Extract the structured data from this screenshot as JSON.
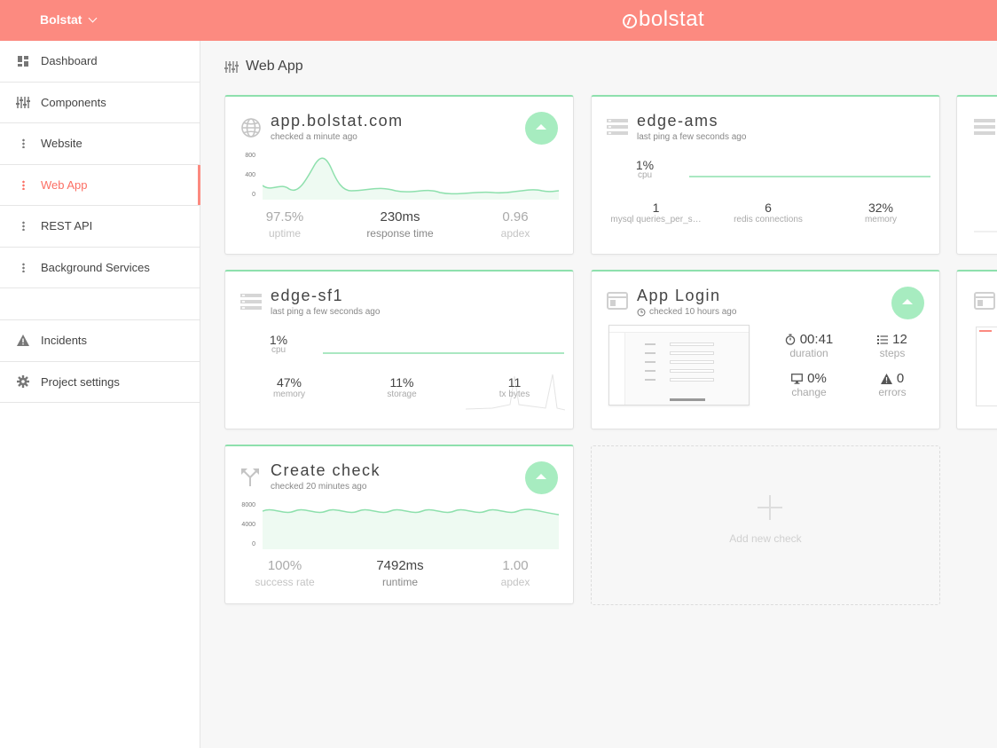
{
  "topbar": {
    "org_name": "Bolstat",
    "logo_text": "bolstat",
    "accent": "#fc8a80"
  },
  "sidebar": {
    "items": [
      {
        "label": "Dashboard",
        "icon": "dashboard-icon"
      },
      {
        "label": "Components",
        "icon": "sliders-icon"
      },
      {
        "label": "Website",
        "icon": "dots-icon"
      },
      {
        "label": "Web App",
        "icon": "dots-icon",
        "active": true
      },
      {
        "label": "REST API",
        "icon": "dots-icon"
      },
      {
        "label": "Background Services",
        "icon": "dots-icon"
      }
    ],
    "lower_items": [
      {
        "label": "Incidents",
        "icon": "warning-icon"
      },
      {
        "label": "Project settings",
        "icon": "gear-icon"
      }
    ]
  },
  "page": {
    "title": "Web App"
  },
  "cards": {
    "app": {
      "title": "app.bolstat.com",
      "subtitle": "checked a minute ago",
      "status": "up",
      "axis": [
        "800",
        "400",
        "0"
      ],
      "stats": [
        {
          "value": "97.5%",
          "label": "uptime"
        },
        {
          "value": "230ms",
          "label": "response time"
        },
        {
          "value": "0.96",
          "label": "apdex"
        }
      ]
    },
    "edge_ams": {
      "title": "edge-ams",
      "subtitle": "last ping a few seconds ago",
      "cpu": {
        "value": "1%",
        "label": "cpu"
      },
      "metrics": [
        {
          "value": "1",
          "label": "mysql queries_per_s…"
        },
        {
          "value": "6",
          "label": "redis connections"
        },
        {
          "value": "32%",
          "label": "memory"
        }
      ]
    },
    "edge_sf1": {
      "title": "edge-sf1",
      "subtitle": "last ping a few seconds ago",
      "cpu": {
        "value": "1%",
        "label": "cpu"
      },
      "metrics": [
        {
          "value": "47%",
          "label": "memory"
        },
        {
          "value": "11%",
          "label": "storage"
        },
        {
          "value": "11",
          "label": "tx bytes"
        }
      ]
    },
    "app_login": {
      "title": "App Login",
      "subtitle": "checked 10 hours ago",
      "status": "up",
      "stats": [
        {
          "value": "00:41",
          "label": "duration",
          "icon": "stopwatch-icon"
        },
        {
          "value": "12",
          "label": "steps",
          "icon": "list-icon"
        },
        {
          "value": "0%",
          "label": "change",
          "icon": "monitor-icon"
        },
        {
          "value": "0",
          "label": "errors",
          "icon": "warning-icon"
        }
      ]
    },
    "create_check": {
      "title": "Create check",
      "subtitle": "checked 20 minutes ago",
      "status": "up",
      "axis": [
        "8000",
        "4000",
        "0"
      ],
      "stats": [
        {
          "value": "100%",
          "label": "success rate"
        },
        {
          "value": "7492ms",
          "label": "runtime"
        },
        {
          "value": "1.00",
          "label": "apdex"
        }
      ]
    },
    "add": {
      "label": "Add new check"
    }
  },
  "colors": {
    "status_up": "#a7ecc0",
    "card_border_top": "#8ee0ad",
    "chart_line": "#8ee0ad",
    "chart_fill": "#eefaf2"
  }
}
